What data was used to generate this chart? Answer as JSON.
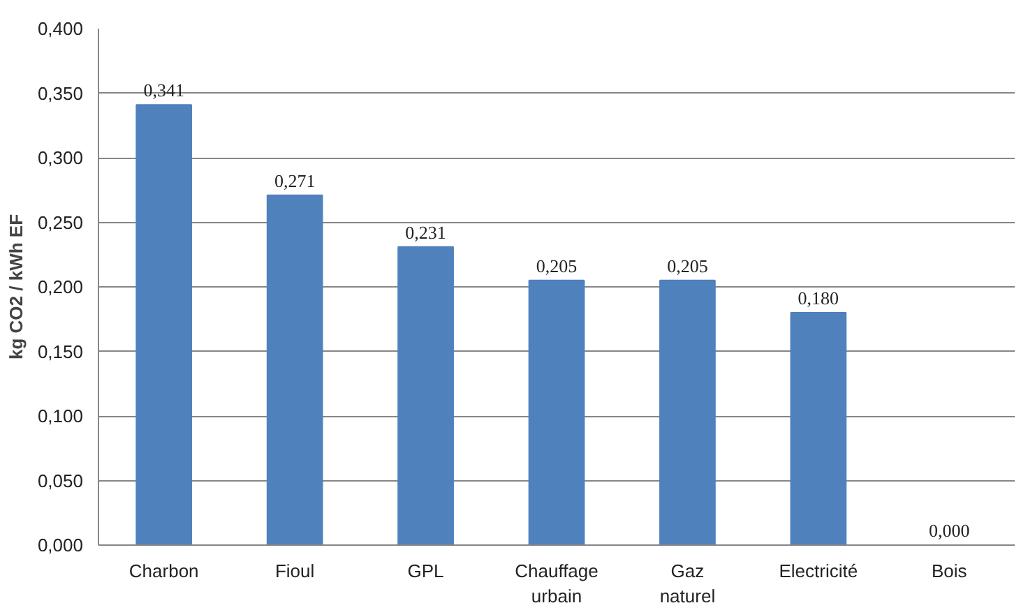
{
  "chart_data": {
    "type": "bar",
    "ylabel": "kg CO2 / kWh EF",
    "categories": [
      "Charbon",
      "Fioul",
      "GPL",
      "Chauffage urbain",
      "Gaz naturel",
      "Electricité",
      "Bois"
    ],
    "values": [
      0.341,
      0.271,
      0.231,
      0.205,
      0.205,
      0.18,
      0.0
    ],
    "value_labels": [
      "0,341",
      "0,271",
      "0,231",
      "0,205",
      "0,205",
      "0,180",
      "0,000"
    ],
    "color": "#4f81bd",
    "ylim": [
      0,
      0.4
    ],
    "yticks": [
      {
        "value": 0,
        "label": "0,000"
      },
      {
        "value": 0.05,
        "label": "0,050"
      },
      {
        "value": 0.1,
        "label": "0,100"
      },
      {
        "value": 0.15,
        "label": "0,150"
      },
      {
        "value": 0.2,
        "label": "0,200"
      },
      {
        "value": 0.25,
        "label": "0,250"
      },
      {
        "value": 0.3,
        "label": "0,300"
      },
      {
        "value": 0.35,
        "label": "0,350"
      },
      {
        "value": 0.4,
        "label": "0,400"
      }
    ],
    "grid": "y"
  }
}
